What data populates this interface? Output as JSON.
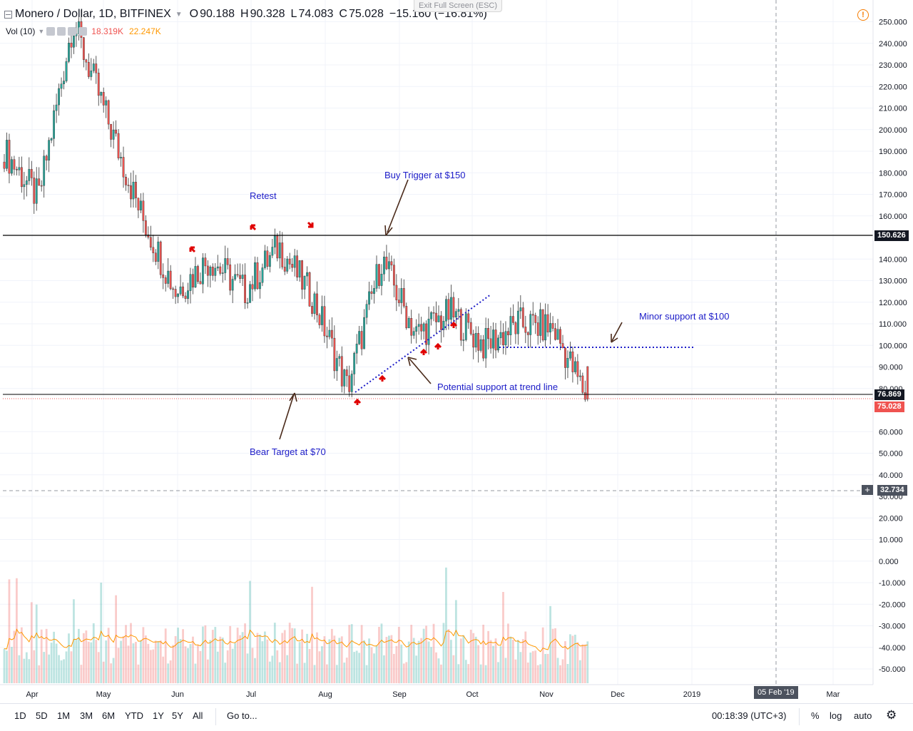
{
  "header": {
    "symbol": "Monero / Dollar, 1D, BITFINEX",
    "open_label": "O",
    "open": "90.188",
    "high_label": "H",
    "high": "90.328",
    "low_label": "L",
    "low": "74.083",
    "close_label": "C",
    "close": "75.028",
    "change": "−15.160 (−16.81%)"
  },
  "volume_legend": {
    "label": "Vol (10)",
    "value1": "18.319K",
    "value2": "22.247K"
  },
  "exit_fullscreen": "Exit Full Screen (ESC)",
  "warning_icon": "!",
  "price_axis": {
    "ticks": [
      "250.000",
      "240.000",
      "230.000",
      "220.000",
      "210.000",
      "200.000",
      "190.000",
      "180.000",
      "170.000",
      "160.000",
      "140.000",
      "130.000",
      "120.000",
      "110.000",
      "100.000",
      "90.000",
      "80.000",
      "60.000",
      "50.000",
      "40.000",
      "30.000",
      "20.000",
      "10.000",
      "0.000",
      "-10.000",
      "-20.000",
      "-30.000",
      "-40.000",
      "-50.000"
    ],
    "tags": {
      "resistance": "150.626",
      "previous": "76.869",
      "last": "75.028",
      "crosshair": "32.734"
    }
  },
  "time_axis": {
    "labels": [
      "Apr",
      "May",
      "Jun",
      "Jul",
      "Aug",
      "Sep",
      "Oct",
      "Nov",
      "Dec",
      "2019",
      "Mar"
    ],
    "crosshair_date": "05 Feb '19"
  },
  "annotations": {
    "retest": "Retest",
    "buy_trigger": "Buy Trigger at $150",
    "minor_support": "Minor support at $100",
    "trend_support": "Potential support at trend line",
    "bear_target": "Bear Target at $70"
  },
  "colors": {
    "up": "#26a69a",
    "down": "#ef5350",
    "annotation": "#1c1cc8",
    "ma": "#ff9800"
  },
  "toolbar": {
    "timeframes": [
      "1D",
      "5D",
      "1M",
      "3M",
      "6M",
      "YTD",
      "1Y",
      "5Y",
      "All"
    ],
    "goto": "Go to...",
    "clock": "00:18:39 (UTC+3)",
    "percent": "%",
    "log": "log",
    "auto": "auto",
    "settings_icon": "gear-icon"
  },
  "chart_data": {
    "type": "candlestick",
    "title": "Monero / Dollar, 1D, BITFINEX",
    "ylim": [
      -55,
      255
    ],
    "last": {
      "open": 90.188,
      "high": 90.328,
      "low": 74.083,
      "close": 75.028,
      "change": -15.16,
      "change_pct": -16.81
    },
    "approx_closes": [
      {
        "date": "Apr",
        "price": 190
      },
      {
        "date": "Apr mid",
        "price": 168
      },
      {
        "date": "May",
        "price": 250
      },
      {
        "date": "May mid",
        "price": 205
      },
      {
        "date": "Jun",
        "price": 160
      },
      {
        "date": "Jun mid",
        "price": 125
      },
      {
        "date": "Jul",
        "price": 140
      },
      {
        "date": "Jul mid",
        "price": 125
      },
      {
        "date": "Jul end",
        "price": 146
      },
      {
        "date": "Aug",
        "price": 122
      },
      {
        "date": "Aug mid",
        "price": 80
      },
      {
        "date": "Sep",
        "price": 140
      },
      {
        "date": "Sep mid",
        "price": 105
      },
      {
        "date": "Oct",
        "price": 115
      },
      {
        "date": "Oct mid",
        "price": 100
      },
      {
        "date": "Nov",
        "price": 110
      },
      {
        "date": "Nov mid",
        "price": 108
      },
      {
        "date": "Nov end",
        "price": 75
      }
    ],
    "horizontal_lines": [
      150.626,
      76.869,
      75.028,
      100
    ],
    "indicator": {
      "name": "Vol (10)",
      "last": [
        18.319,
        22.247
      ],
      "unit": "K"
    }
  }
}
